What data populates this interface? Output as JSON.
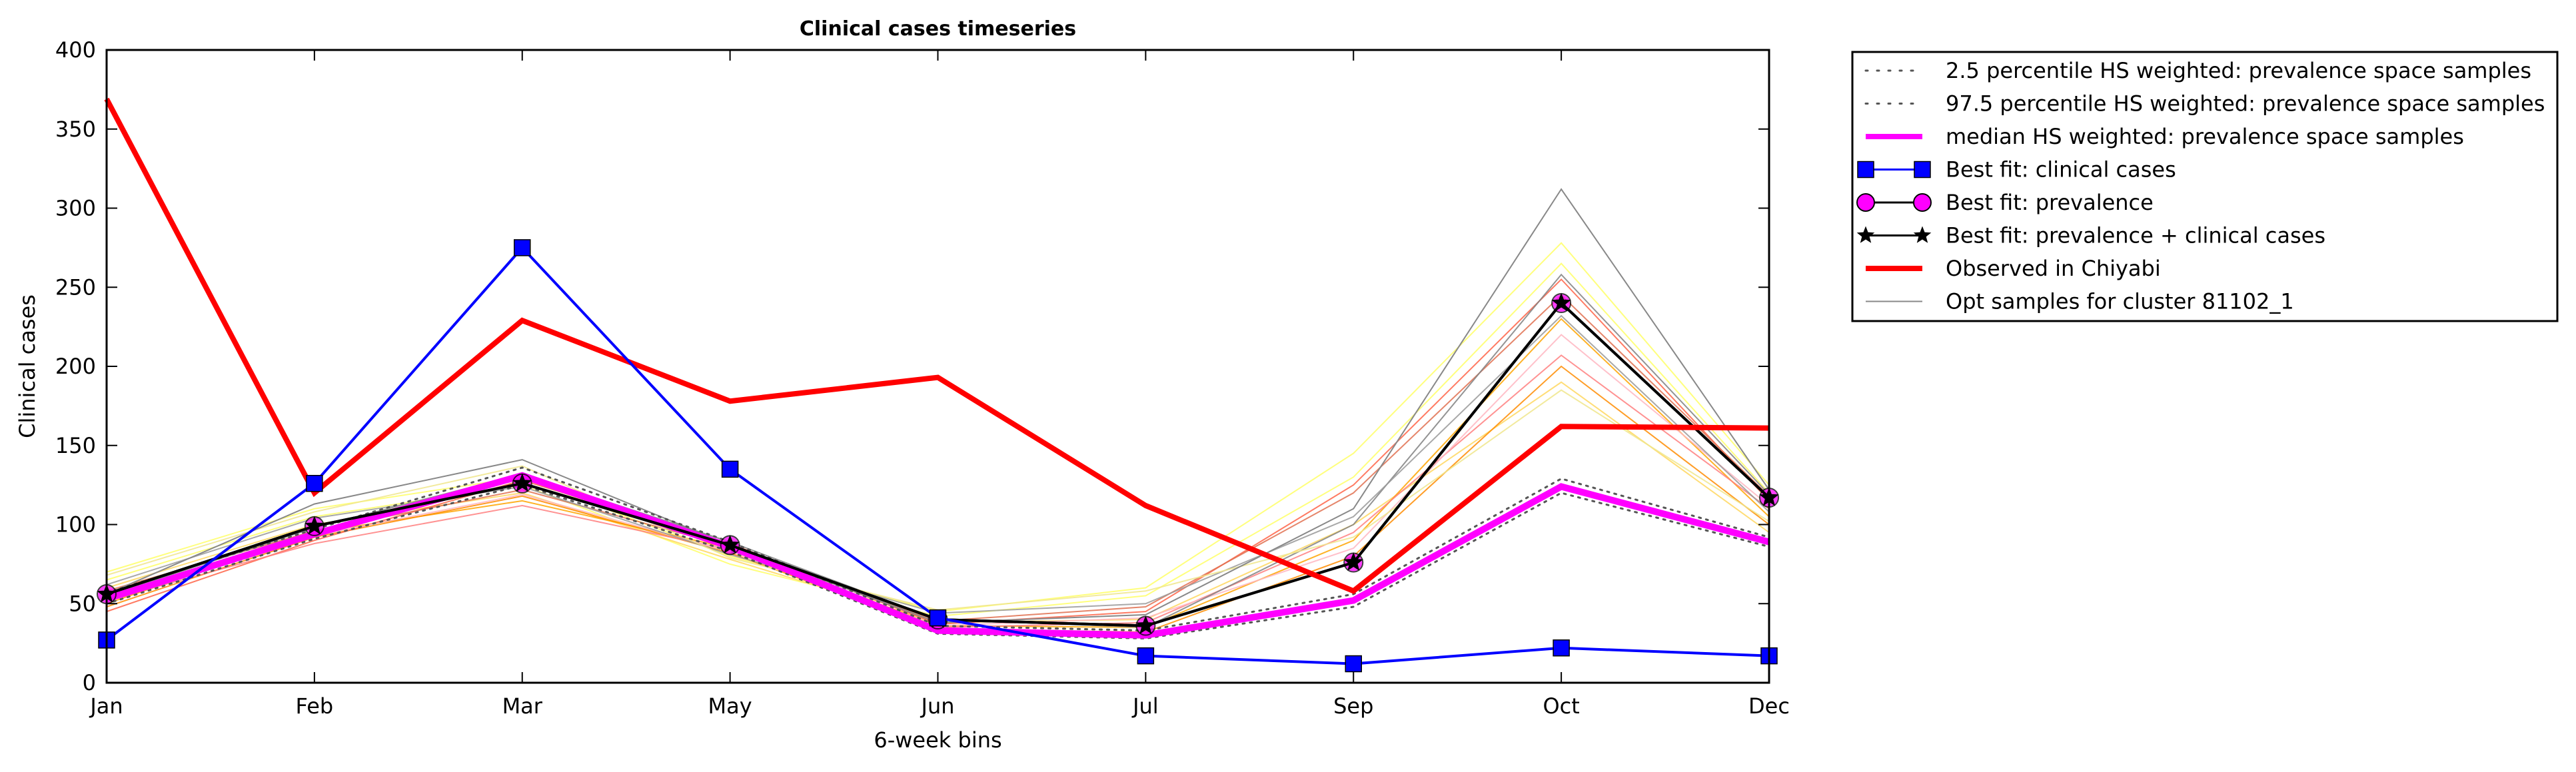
{
  "chart_data": {
    "type": "line",
    "title": "Clinical cases timeseries",
    "xlabel": "6-week bins",
    "ylabel": "Clinical cases",
    "categories": [
      "Jan",
      "Feb",
      "Mar",
      "May",
      "Jun",
      "Jul",
      "Sep",
      "Oct",
      "Dec"
    ],
    "ylim": [
      0,
      400
    ],
    "yticks": [
      "0",
      "50",
      "100",
      "150",
      "200",
      "250",
      "300",
      "350",
      "400"
    ],
    "grid": false,
    "legend_position": "outside-right",
    "series": [
      {
        "name": "2.5 percentile HS weighted: prevalence space samples",
        "style": "dotted",
        "color": "#555555",
        "values": [
          50,
          91,
          125,
          83,
          31,
          28,
          48,
          120,
          86
        ]
      },
      {
        "name": "97.5 percentile HS weighted: prevalence space samples",
        "style": "dotted",
        "color": "#555555",
        "values": [
          57,
          97,
          136,
          89,
          36,
          33,
          56,
          129,
          92
        ]
      },
      {
        "name": "median HS weighted: prevalence space samples",
        "style": "thick",
        "color": "#ff00ff",
        "values": [
          53,
          94,
          131,
          86,
          33,
          30,
          52,
          124,
          89
        ]
      },
      {
        "name": "Best fit: clinical cases",
        "style": "square",
        "color": "#0000ff",
        "values": [
          27,
          126,
          275,
          135,
          41,
          17,
          12,
          22,
          17
        ]
      },
      {
        "name": "Best fit: prevalence",
        "style": "circle",
        "color": "#ff00ff",
        "values": [
          56,
          99,
          126,
          87,
          40,
          36,
          76,
          240,
          117
        ]
      },
      {
        "name": "Best fit: prevalence + clinical cases",
        "style": "star",
        "color": "#000000",
        "values": [
          56,
          99,
          126,
          87,
          40,
          36,
          76,
          240,
          117
        ]
      },
      {
        "name": "Observed in Chiyabi",
        "style": "thick",
        "color": "#ff0000",
        "values": [
          369,
          120,
          229,
          178,
          193,
          112,
          58,
          162,
          161
        ]
      },
      {
        "name": "Opt samples for cluster 81102_1",
        "style": "thin",
        "color": "#888888",
        "values": [
          56,
          113,
          141,
          87,
          38,
          43,
          110,
          312,
          122
        ]
      }
    ],
    "opt_samples": [
      {
        "color": "#ffff66",
        "values": [
          70,
          110,
          130,
          80,
          45,
          60,
          145,
          278,
          125
        ]
      },
      {
        "color": "#ffff66",
        "values": [
          65,
          105,
          125,
          75,
          42,
          55,
          130,
          265,
          120
        ]
      },
      {
        "color": "#ffd75e",
        "values": [
          60,
          100,
          120,
          78,
          38,
          40,
          100,
          190,
          95
        ]
      },
      {
        "color": "#ffa500",
        "values": [
          50,
          95,
          115,
          85,
          36,
          35,
          90,
          230,
          105
        ]
      },
      {
        "color": "#ff8c00",
        "values": [
          48,
          92,
          118,
          82,
          34,
          32,
          80,
          200,
          100
        ]
      },
      {
        "color": "#ff6347",
        "values": [
          45,
          90,
          128,
          88,
          37,
          45,
          125,
          255,
          115
        ]
      },
      {
        "color": "#ff7f7f",
        "values": [
          52,
          88,
          112,
          84,
          35,
          38,
          95,
          207,
          110
        ]
      },
      {
        "color": "#e07050",
        "values": [
          58,
          96,
          122,
          86,
          39,
          48,
          120,
          245,
          118
        ]
      },
      {
        "color": "#ffb6c1",
        "values": [
          54,
          93,
          119,
          83,
          36,
          41,
          85,
          220,
          112
        ]
      },
      {
        "color": "#808080",
        "values": [
          55,
          98,
          132,
          89,
          40,
          35,
          100,
          258,
          119
        ]
      },
      {
        "color": "#999999",
        "values": [
          62,
          104,
          124,
          81,
          44,
          50,
          105,
          232,
          108
        ]
      },
      {
        "color": "#f0e68c",
        "values": [
          68,
          108,
          137,
          79,
          46,
          58,
          92,
          185,
          102
        ]
      }
    ]
  }
}
